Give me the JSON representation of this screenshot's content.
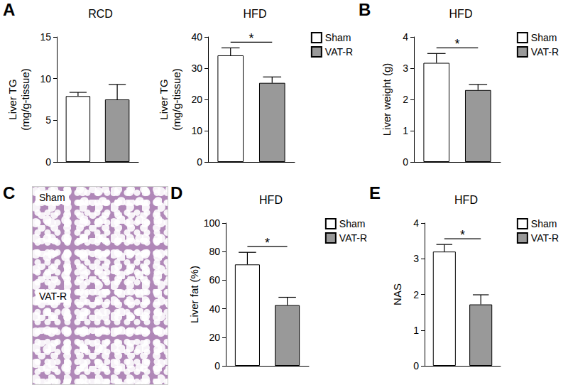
{
  "chart_data": [
    {
      "type": "bar",
      "panel": "A",
      "title": "RCD",
      "y_label": "Liver TG\n(mg/g-tissue)",
      "categories": [
        null
      ],
      "series": [
        {
          "name": "Sham",
          "color": "#ffffff",
          "values": [
            7.9
          ],
          "errors": [
            0.45
          ]
        },
        {
          "name": "VAT-R",
          "color": "#999999",
          "values": [
            7.5
          ],
          "errors": [
            1.8
          ]
        }
      ],
      "ylim": [
        0,
        15
      ],
      "yticks": [
        0,
        5,
        10,
        15
      ],
      "grid": false,
      "tick_labels": "y"
    },
    {
      "type": "bar",
      "title": "HFD",
      "y_label": "Liver TG\n(mg/g-tissue)",
      "categories": [
        null
      ],
      "series": [
        {
          "name": "Sham",
          "color": "#ffffff",
          "values": [
            34.1
          ],
          "errors": [
            2.4
          ]
        },
        {
          "name": "VAT-R",
          "color": "#999999",
          "values": [
            25.3
          ],
          "errors": [
            1.9
          ]
        }
      ],
      "ylim": [
        0,
        40
      ],
      "yticks": [
        0,
        10,
        20,
        30,
        40
      ],
      "grid": false,
      "tick_labels": "y",
      "legend": "top-right",
      "significance": "*"
    },
    {
      "type": "bar",
      "panel": "B",
      "title": "HFD",
      "y_label": "Liver weight (g)",
      "categories": [
        null
      ],
      "series": [
        {
          "name": "Sham",
          "color": "#ffffff",
          "values": [
            3.17
          ],
          "errors": [
            0.3
          ]
        },
        {
          "name": "VAT-R",
          "color": "#999999",
          "values": [
            2.3
          ],
          "errors": [
            0.18
          ]
        }
      ],
      "ylim": [
        0,
        4
      ],
      "yticks": [
        0,
        1,
        2,
        3,
        4
      ],
      "grid": false,
      "tick_labels": "y",
      "legend": "top-right",
      "significance": "*"
    },
    {
      "type": "image",
      "panel": "C",
      "labels": [
        "Sham",
        "VAT-R"
      ]
    },
    {
      "type": "bar",
      "panel": "D",
      "title": "HFD",
      "y_label": "Liver fat (%)",
      "categories": [
        null
      ],
      "series": [
        {
          "name": "Sham",
          "color": "#ffffff",
          "values": [
            71
          ],
          "errors": [
            8.5
          ]
        },
        {
          "name": "VAT-R",
          "color": "#999999",
          "values": [
            42.5
          ],
          "errors": [
            5.5
          ]
        }
      ],
      "ylim": [
        0,
        100
      ],
      "yticks": [
        0,
        20,
        40,
        60,
        80,
        100
      ],
      "grid": false,
      "tick_labels": "y",
      "legend": "top-right",
      "significance": "*"
    },
    {
      "type": "bar",
      "panel": "E",
      "title": "HFD",
      "y_label": "NAS",
      "categories": [
        null
      ],
      "series": [
        {
          "name": "Sham",
          "color": "#ffffff",
          "values": [
            3.2
          ],
          "errors": [
            0.2
          ]
        },
        {
          "name": "VAT-R",
          "color": "#999999",
          "values": [
            1.72
          ],
          "errors": [
            0.27
          ]
        }
      ],
      "ylim": [
        0,
        4
      ],
      "yticks": [
        0,
        1,
        2,
        3,
        4
      ],
      "grid": false,
      "tick_labels": "y",
      "legend": "top-right",
      "significance": "*"
    }
  ]
}
